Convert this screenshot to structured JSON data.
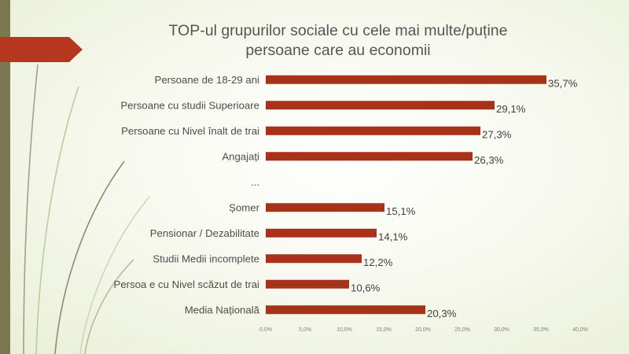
{
  "colors": {
    "bar": "#a8311a",
    "accent_arrow": "#b5371f",
    "left_bar": "#7d7650",
    "decor_lines": "#7e7a52"
  },
  "chart_data": {
    "type": "bar",
    "orientation": "horizontal",
    "title_lines": [
      "TOP-ul grupurilor sociale cu cele mai multe/puține",
      "persoane care au economii"
    ],
    "categories": [
      "Persoane de 18-29 ani",
      "Persoane cu studii Superioare",
      "Persoane cu Nivel înalt de trai",
      "Angajați",
      "...",
      "Șomer",
      "Pensionar / Dezabilitate",
      "Studii Medii incomplete",
      "Persoa e cu Nivel scăzut de trai",
      "Media Națională"
    ],
    "values": [
      35.7,
      29.1,
      27.3,
      26.3,
      null,
      15.1,
      14.1,
      12.2,
      10.6,
      20.3
    ],
    "value_labels": [
      "35,7%",
      "29,1%",
      "27,3%",
      "26,3%",
      "",
      "15,1%",
      "14,1%",
      "12,2%",
      "10,6%",
      "20,3%"
    ],
    "xlim": [
      0,
      40
    ],
    "x_ticks": [
      0,
      5,
      10,
      15,
      20,
      25,
      30,
      35,
      40
    ],
    "x_tick_labels": [
      "0,0%",
      "5,0%",
      "10,0%",
      "15,0%",
      "20,0%",
      "25,0%",
      "30,0%",
      "35,0%",
      "40,0%"
    ],
    "grid": false,
    "legend": "none"
  }
}
